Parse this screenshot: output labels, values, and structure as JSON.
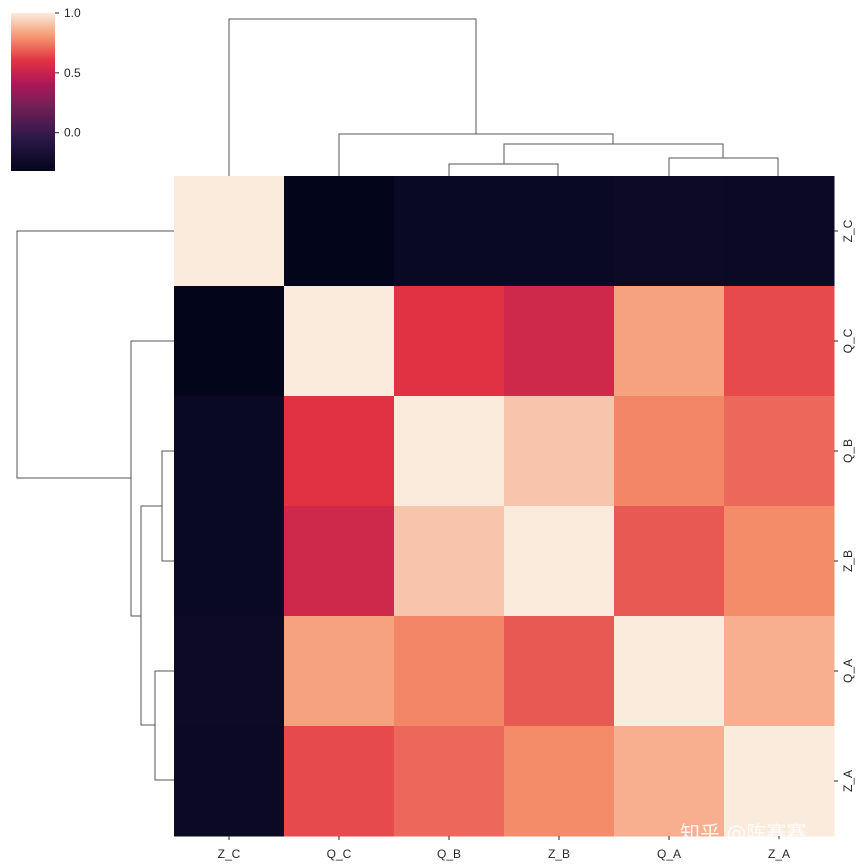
{
  "chart_data": {
    "type": "heatmap",
    "variant": "clustermap",
    "labels": [
      "Z_C",
      "Q_C",
      "Q_B",
      "Z_B",
      "Q_A",
      "Z_A"
    ],
    "matrix": [
      [
        1.0,
        -0.32,
        -0.27,
        -0.27,
        -0.25,
        -0.26
      ],
      [
        -0.32,
        1.0,
        0.6,
        0.53,
        0.83,
        0.65
      ],
      [
        -0.27,
        0.6,
        1.0,
        0.91,
        0.77,
        0.71
      ],
      [
        -0.27,
        0.53,
        0.91,
        1.0,
        0.68,
        0.78
      ],
      [
        -0.25,
        0.83,
        0.77,
        0.68,
        1.0,
        0.86
      ],
      [
        -0.26,
        0.65,
        0.71,
        0.78,
        0.86,
        1.0
      ]
    ],
    "colorbar": {
      "colormap": "rocket",
      "vmin": -0.32,
      "vmax": 1.0,
      "ticks": [
        1.0,
        0.5,
        0.0
      ],
      "tick_labels": [
        "1.0",
        "0.5",
        "0.0"
      ]
    },
    "row_dendrogram": true,
    "col_dendrogram": true,
    "grid": false
  },
  "watermark": "知乎 @陈赛赛"
}
